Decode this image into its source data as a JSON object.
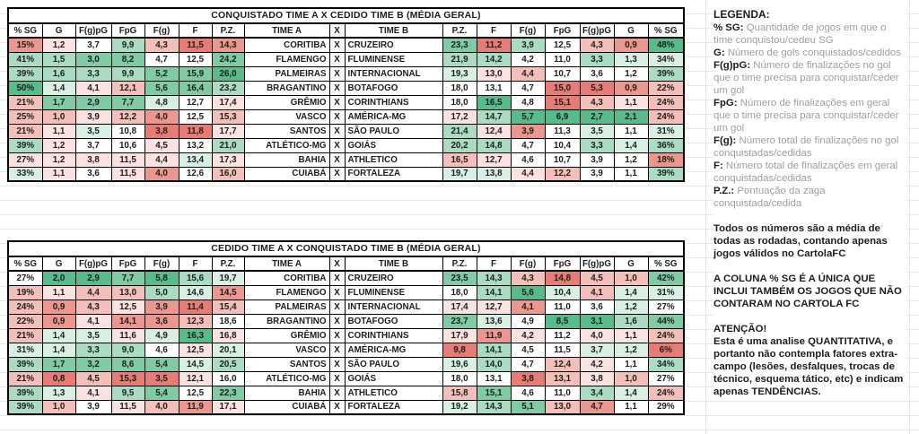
{
  "palette": {
    "g4": "#57BB8A",
    "g3": "#7FCBA4",
    "g2": "#A9DCC2",
    "g1": "#D8EFE3",
    "w": "#FFFFFF",
    "r1": "#F9E2DF",
    "r2": "#F3BFB8",
    "r3": "#EB978E",
    "r4": "#E67C73"
  },
  "tables": [
    {
      "title": "CONQUISTADO TIME A X CEDIDO TIME B (MÉDIA GERAL)",
      "versus_label": "X",
      "headers": [
        "% SG",
        "G",
        "F(g)pG",
        "FpG",
        "F(g)",
        "F",
        "P.Z.",
        "TIME A",
        "X",
        "TIME B",
        "P.Z.",
        "F",
        "F(g)",
        "FpG",
        "F(g)pG",
        "G",
        "% SG"
      ],
      "rows": [
        {
          "team_a": "CORITIBA",
          "team_b": "CRUZEIRO",
          "left": [
            "15%",
            "1,2",
            "3,7",
            "9,9",
            "4,3",
            "11,5",
            "14,3"
          ],
          "left_c": [
            "r3",
            "r1",
            "w",
            "g2",
            "r2",
            "r4",
            "r3"
          ],
          "right": [
            "23,3",
            "11,2",
            "3,9",
            "12,5",
            "4,3",
            "0,9",
            "48%"
          ],
          "right_c": [
            "g3",
            "r4",
            "g2",
            "w",
            "r2",
            "r3",
            "g4"
          ]
        },
        {
          "team_a": "FLAMENGO",
          "team_b": "FLUMINENSE",
          "left": [
            "41%",
            "1,5",
            "3,0",
            "8,2",
            "4,7",
            "12,5",
            "24,2"
          ],
          "left_c": [
            "g2",
            "g2",
            "g3",
            "g3",
            "w",
            "w",
            "g3"
          ],
          "right": [
            "21,9",
            "14,2",
            "4,2",
            "11,0",
            "3,3",
            "1,3",
            "34%"
          ],
          "right_c": [
            "g2",
            "g2",
            "w",
            "w",
            "g2",
            "g1",
            "g1"
          ]
        },
        {
          "team_a": "PALMEIRAS",
          "team_b": "INTERNACIONAL",
          "left": [
            "39%",
            "1,6",
            "3,3",
            "9,9",
            "5,2",
            "15,9",
            "26,0"
          ],
          "left_c": [
            "g2",
            "g2",
            "g2",
            "g2",
            "g3",
            "g3",
            "g4"
          ],
          "right": [
            "19,3",
            "13,0",
            "4,4",
            "10,7",
            "3,6",
            "1,2",
            "39%"
          ],
          "right_c": [
            "g1",
            "r1",
            "r2",
            "w",
            "w",
            "w",
            "g2"
          ]
        },
        {
          "team_a": "BRAGANTINO",
          "team_b": "BOTAFOGO",
          "left": [
            "50%",
            "1,4",
            "4,1",
            "12,1",
            "5,6",
            "16,4",
            "23,2"
          ],
          "left_c": [
            "g4",
            "g1",
            "r1",
            "r2",
            "g3",
            "g3",
            "g2"
          ],
          "right": [
            "18,0",
            "13,1",
            "4,7",
            "15,0",
            "5,3",
            "0,9",
            "22%"
          ],
          "right_c": [
            "w",
            "w",
            "w",
            "r4",
            "r4",
            "r3",
            "r2"
          ]
        },
        {
          "team_a": "GRÊMIO",
          "team_b": "CORINTHIANS",
          "left": [
            "21%",
            "1,7",
            "2,9",
            "7,7",
            "4,8",
            "12,7",
            "17,4"
          ],
          "left_c": [
            "r2",
            "g3",
            "g3",
            "g3",
            "g1",
            "w",
            "r1"
          ],
          "right": [
            "18,0",
            "16,5",
            "4,8",
            "15,1",
            "4,3",
            "1,1",
            "24%"
          ],
          "right_c": [
            "w",
            "g4",
            "w",
            "r4",
            "r2",
            "r1",
            "r2"
          ]
        },
        {
          "team_a": "VASCO",
          "team_b": "AMÉRICA-MG",
          "left": [
            "25%",
            "1,0",
            "3,9",
            "12,2",
            "4,0",
            "12,5",
            "15,3"
          ],
          "left_c": [
            "r2",
            "r2",
            "r1",
            "r2",
            "r3",
            "w",
            "r2"
          ],
          "right": [
            "17,2",
            "14,7",
            "5,7",
            "6,9",
            "2,7",
            "2,1",
            "24%"
          ],
          "right_c": [
            "r1",
            "g2",
            "g4",
            "g4",
            "g4",
            "g4",
            "r2"
          ]
        },
        {
          "team_a": "SANTOS",
          "team_b": "SÃO PAULO",
          "left": [
            "21%",
            "1,1",
            "3,5",
            "10,8",
            "3,8",
            "11,8",
            "17,7"
          ],
          "left_c": [
            "r2",
            "r1",
            "g1",
            "w",
            "r4",
            "r4",
            "r1"
          ],
          "right": [
            "21,4",
            "12,4",
            "3,9",
            "11,3",
            "3,5",
            "1,1",
            "31%"
          ],
          "right_c": [
            "g2",
            "r1",
            "r3",
            "w",
            "g1",
            "w",
            "g1"
          ]
        },
        {
          "team_a": "ATLÉTICO-MG",
          "team_b": "GOIÁS",
          "left": [
            "39%",
            "1,2",
            "3,7",
            "10,6",
            "4,5",
            "13,2",
            "21,0"
          ],
          "left_c": [
            "g2",
            "r1",
            "w",
            "w",
            "r1",
            "w",
            "g2"
          ],
          "right": [
            "20,2",
            "14,8",
            "4,7",
            "10,4",
            "3,3",
            "1,4",
            "36%"
          ],
          "right_c": [
            "g2",
            "g2",
            "w",
            "w",
            "g2",
            "g1",
            "g2"
          ]
        },
        {
          "team_a": "BAHIA",
          "team_b": "ATHLETICO",
          "left": [
            "27%",
            "1,2",
            "3,8",
            "11,5",
            "4,4",
            "13,4",
            "17,3"
          ],
          "left_c": [
            "r1",
            "r1",
            "r1",
            "r1",
            "r1",
            "g1",
            "r1"
          ],
          "right": [
            "16,5",
            "12,7",
            "4,6",
            "10,7",
            "3,9",
            "1,2",
            "18%"
          ],
          "right_c": [
            "r2",
            "r1",
            "w",
            "w",
            "w",
            "w",
            "r3"
          ]
        },
        {
          "team_a": "CUIABÁ",
          "team_b": "FORTALEZA",
          "left": [
            "33%",
            "1,1",
            "3,6",
            "11,5",
            "4,0",
            "12,6",
            "16,0"
          ],
          "left_c": [
            "g1",
            "r1",
            "w",
            "r1",
            "r3",
            "w",
            "r2"
          ],
          "right": [
            "19,7",
            "13,8",
            "4,4",
            "12,2",
            "3,9",
            "1,1",
            "39%"
          ],
          "right_c": [
            "g1",
            "g1",
            "r1",
            "r2",
            "w",
            "w",
            "g2"
          ]
        }
      ]
    },
    {
      "title": "CEDIDO TIME A X CONQUISTADO TIME B (MÉDIA GERAL)",
      "versus_label": "X",
      "headers": [
        "% SG",
        "G",
        "F(g)pG",
        "FpG",
        "F(g)",
        "F",
        "P.Z.",
        "TIME A",
        "X",
        "TIME B",
        "P.Z.",
        "F",
        "F(g)",
        "FpG",
        "F(g)pG",
        "G",
        "% SG"
      ],
      "rows": [
        {
          "team_a": "CORITIBA",
          "team_b": "CRUZEIRO",
          "left": [
            "27%",
            "2,0",
            "2,9",
            "7,7",
            "5,8",
            "15,6",
            "19,7"
          ],
          "left_c": [
            "w",
            "g4",
            "g4",
            "g3",
            "g4",
            "g2",
            "g1"
          ],
          "right": [
            "23,5",
            "14,3",
            "4,3",
            "14,8",
            "4,5",
            "1,0",
            "42%"
          ],
          "right_c": [
            "g3",
            "g2",
            "r2",
            "r4",
            "r2",
            "r2",
            "g3"
          ]
        },
        {
          "team_a": "FLAMENGO",
          "team_b": "FLUMINENSE",
          "left": [
            "19%",
            "1,1",
            "4,4",
            "13,0",
            "5,0",
            "14,6",
            "14,5"
          ],
          "left_c": [
            "r2",
            "r1",
            "r2",
            "r2",
            "g2",
            "g1",
            "r3"
          ],
          "right": [
            "18,0",
            "14,1",
            "5,6",
            "10,4",
            "4,1",
            "1,4",
            "31%"
          ],
          "right_c": [
            "w",
            "g2",
            "g4",
            "g1",
            "r2",
            "g1",
            "g1"
          ]
        },
        {
          "team_a": "PALMEIRAS",
          "team_b": "INTERNACIONAL",
          "left": [
            "24%",
            "0,9",
            "4,3",
            "12,5",
            "3,9",
            "11,4",
            "15,4"
          ],
          "left_c": [
            "r2",
            "r3",
            "r2",
            "r1",
            "r3",
            "r4",
            "r2"
          ],
          "right": [
            "17,4",
            "12,7",
            "4,1",
            "11,0",
            "3,6",
            "1,2",
            "27%"
          ],
          "right_c": [
            "r1",
            "r1",
            "r3",
            "w",
            "w",
            "g1",
            "w"
          ]
        },
        {
          "team_a": "BRAGANTINO",
          "team_b": "BOTAFOGO",
          "left": [
            "22%",
            "0,9",
            "4,1",
            "14,1",
            "3,6",
            "12,3",
            "18,6"
          ],
          "left_c": [
            "r2",
            "r3",
            "r1",
            "r3",
            "r3",
            "r2",
            "w"
          ],
          "right": [
            "23,7",
            "13,6",
            "4,9",
            "8,5",
            "3,1",
            "1,6",
            "44%"
          ],
          "right_c": [
            "g3",
            "g1",
            "w",
            "g4",
            "g4",
            "g2",
            "g3"
          ]
        },
        {
          "team_a": "GRÊMIO",
          "team_b": "CORINTHIANS",
          "left": [
            "21%",
            "1,4",
            "3,5",
            "11,6",
            "4,9",
            "16,3",
            "16,8"
          ],
          "left_c": [
            "r2",
            "g1",
            "g1",
            "r1",
            "g1",
            "g4",
            "r1"
          ],
          "right": [
            "17,9",
            "11,9",
            "4,2",
            "11,2",
            "4,0",
            "1,1",
            "24%"
          ],
          "right_c": [
            "r1",
            "r3",
            "r1",
            "w",
            "r1",
            "r1",
            "r2"
          ]
        },
        {
          "team_a": "VASCO",
          "team_b": "AMÉRICA-MG",
          "left": [
            "31%",
            "1,4",
            "3,3",
            "9,0",
            "4,6",
            "12,5",
            "20,1"
          ],
          "left_c": [
            "g1",
            "g1",
            "g2",
            "g2",
            "w",
            "r1",
            "g1"
          ],
          "right": [
            "9,8",
            "14,1",
            "4,5",
            "11,5",
            "3,7",
            "1,2",
            "6%"
          ],
          "right_c": [
            "r4",
            "g2",
            "w",
            "w",
            "g1",
            "g1",
            "r4"
          ]
        },
        {
          "team_a": "SANTOS",
          "team_b": "SÃO PAULO",
          "left": [
            "39%",
            "1,7",
            "3,2",
            "8,6",
            "5,4",
            "14,5",
            "20,5"
          ],
          "left_c": [
            "g2",
            "g3",
            "g3",
            "g3",
            "g3",
            "g1",
            "g2"
          ],
          "right": [
            "19,6",
            "14,0",
            "4,7",
            "12,4",
            "4,2",
            "1,1",
            "34%"
          ],
          "right_c": [
            "g1",
            "g2",
            "w",
            "r2",
            "r1",
            "w",
            "g2"
          ]
        },
        {
          "team_a": "ATLÉTICO-MG",
          "team_b": "GOIÁS",
          "left": [
            "21%",
            "0,8",
            "4,5",
            "15,3",
            "3,5",
            "12,1",
            "16,0"
          ],
          "left_c": [
            "r2",
            "r4",
            "r2",
            "r4",
            "r4",
            "r1",
            "w"
          ],
          "right": [
            "18,0",
            "13,1",
            "3,8",
            "13,1",
            "3,8",
            "1,0",
            "27%"
          ],
          "right_c": [
            "w",
            "w",
            "r4",
            "r2",
            "r1",
            "r2",
            "w"
          ]
        },
        {
          "team_a": "BAHIA",
          "team_b": "ATHLETICO",
          "left": [
            "39%",
            "1,3",
            "4,1",
            "9,5",
            "5,4",
            "12,5",
            "22,3"
          ],
          "left_c": [
            "g2",
            "g1",
            "r1",
            "g2",
            "g3",
            "w",
            "g3"
          ],
          "right": [
            "15,8",
            "15,1",
            "4,6",
            "11,0",
            "3,4",
            "1,4",
            "24%"
          ],
          "right_c": [
            "r2",
            "g3",
            "w",
            "w",
            "g2",
            "g1",
            "r2"
          ]
        },
        {
          "team_a": "CUIABÁ",
          "team_b": "FORTALEZA",
          "left": [
            "39%",
            "1,0",
            "3,9",
            "11,5",
            "4,0",
            "11,9",
            "17,1"
          ],
          "left_c": [
            "g2",
            "r2",
            "w",
            "r1",
            "r2",
            "r3",
            "r1"
          ],
          "right": [
            "19,2",
            "14,3",
            "5,1",
            "13,0",
            "4,7",
            "1,1",
            "29%"
          ],
          "right_c": [
            "g1",
            "g2",
            "g3",
            "r2",
            "r3",
            "w",
            "w"
          ]
        }
      ]
    }
  ],
  "legend": {
    "title": "LEGENDA:",
    "items": [
      {
        "term": "% SG:",
        "desc": "Quantidade de jogos em que o time conquistou/cedeu SG"
      },
      {
        "term": "G:",
        "desc": "Número de gols conquistados/cedidos"
      },
      {
        "term": "F(g)pG:",
        "desc": "Número de finalizações no gol que o time precisa para conquistar/ceder um gol"
      },
      {
        "term": "FpG:",
        "desc": "Número de finalizações em geral que o time precisa para conquistar/ceder um gol"
      },
      {
        "term": "F(g):",
        "desc": "Número total de finalizações no gol conquistadas/cedidas"
      },
      {
        "term": "F:",
        "desc": "Número total de finalizações em geral conquistadas/cedidas"
      },
      {
        "term": "P.Z.:",
        "desc": "Pontuação da zaga conquistada/cedida"
      }
    ],
    "note1": "Todos os números são a média de todas as rodadas, contando apenas jogos válidos no CartolaFC",
    "note2": "A COLUNA % SG É A ÚNICA QUE INCLUI TAMBÉM OS JOGOS QUE NÃO CONTARAM NO CARTOLA FC",
    "warning_title": "ATENÇÃO!",
    "warning_body": "Esta é uma analise QUANTITATIVA, e portanto não contempla fatores extra-campo (lesões, desfalques, trocas de técnico, esquema tático, etc) e indicam apenas TENDÊNCIAS."
  }
}
